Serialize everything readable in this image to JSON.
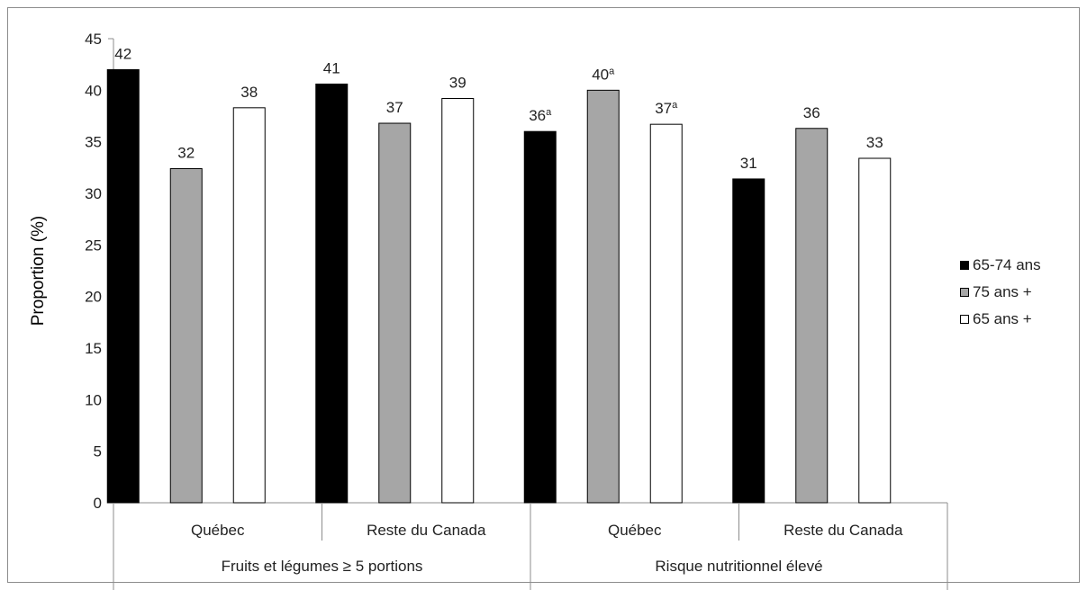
{
  "chart_data": {
    "type": "bar",
    "ylabel": "Proportion (%)",
    "ylim": [
      0,
      45
    ],
    "yticks": [
      0,
      5,
      10,
      15,
      20,
      25,
      30,
      35,
      40,
      45
    ],
    "groups": [
      {
        "label": "Fruits et légumes ≥ 5 portions",
        "categories": [
          "Québec",
          "Reste du Canada"
        ]
      },
      {
        "label": "Risque nutritionnel élevé",
        "categories": [
          "Québec",
          "Reste du Canada"
        ]
      }
    ],
    "categories": [
      "Québec",
      "Reste du Canada",
      "Québec",
      "Reste du Canada"
    ],
    "series": [
      {
        "name": "65-74 ans",
        "color": "#000000",
        "values": [
          42.0,
          40.6,
          36.0,
          31.4
        ],
        "labels": [
          "42",
          "41",
          "36",
          "31"
        ],
        "superscripts": [
          "",
          "",
          "a",
          ""
        ]
      },
      {
        "name": "75 ans +",
        "color": "#a6a6a6",
        "values": [
          32.4,
          36.8,
          40.0,
          36.3
        ],
        "labels": [
          "32",
          "37",
          "40",
          "36"
        ],
        "superscripts": [
          "",
          "",
          "a",
          ""
        ]
      },
      {
        "name": "65 ans +",
        "color": "#ffffff",
        "values": [
          38.3,
          39.2,
          36.7,
          33.4
        ],
        "labels": [
          "38",
          "39",
          "37",
          "33"
        ],
        "superscripts": [
          "",
          "",
          "a",
          ""
        ]
      }
    ],
    "legend_position": "right",
    "grid": false
  }
}
